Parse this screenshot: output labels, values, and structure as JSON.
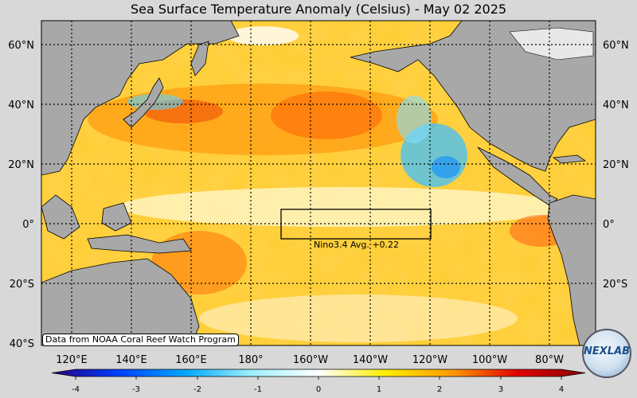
{
  "title": "Sea Surface Temperature Anomaly (Celsius) - May 02 2025",
  "map": {
    "lat_labels": [
      "60°N",
      "40°N",
      "20°N",
      "0°",
      "20°S",
      "40°S"
    ],
    "lon_labels": [
      "120°E",
      "140°E",
      "160°E",
      "180°",
      "160°W",
      "140°W",
      "120°W",
      "100°W",
      "80°W"
    ],
    "land_color": "#a8a8a8",
    "background_color": "#d8d8d8",
    "grid": "dotted"
  },
  "nino_box": {
    "label": "Nino3.4 Avg. +0.22",
    "value": 0.22
  },
  "colorbar": {
    "ticks": [
      "-4",
      "-3",
      "-2",
      "-1",
      "0",
      "1",
      "2",
      "3",
      "4"
    ],
    "colors": [
      "#2a0080",
      "#0040ff",
      "#00a8ff",
      "#a0f0ff",
      "#ffffff",
      "#ffee00",
      "#ff9a00",
      "#e00000",
      "#8b0000"
    ]
  },
  "source_note": "Data from NOAA Coral Reef Watch Program",
  "logo_text": "NEXLAB"
}
